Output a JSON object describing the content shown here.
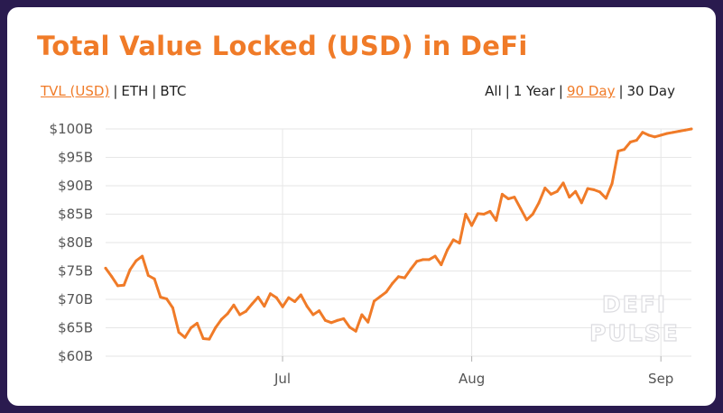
{
  "header": {
    "title": "Total Value Locked (USD) in DeFi"
  },
  "metric_tabs": [
    {
      "label": "TVL (USD)",
      "active": true
    },
    {
      "label": "ETH",
      "active": false
    },
    {
      "label": "BTC",
      "active": false
    }
  ],
  "range_tabs": [
    {
      "label": "All",
      "active": false
    },
    {
      "label": "1 Year",
      "active": false
    },
    {
      "label": "90 Day",
      "active": true
    },
    {
      "label": "30 Day",
      "active": false
    }
  ],
  "separator": "|",
  "watermark": {
    "line1": "DEFI",
    "line2": "PULSE"
  },
  "colors": {
    "accent": "#f07b28",
    "line": "#f07b28",
    "grid": "#e6e6e6",
    "background": "#2a1b4f"
  },
  "chart_data": {
    "type": "line",
    "title": "Total Value Locked (USD) in DeFi",
    "xlabel": "",
    "ylabel": "",
    "y_ticks": [
      "$60B",
      "$65B",
      "$70B",
      "$75B",
      "$80B",
      "$85B",
      "$90B",
      "$95B",
      "$100B"
    ],
    "x_ticks": [
      {
        "label": "Jul",
        "value": "2020-07-01"
      },
      {
        "label": "Aug",
        "value": "2020-08-01"
      },
      {
        "label": "Sep",
        "value": "2020-09-01"
      }
    ],
    "xlim": [
      "2020-06-02",
      "2020-09-06"
    ],
    "ylim": [
      60,
      100
    ],
    "grid": true,
    "series": [
      {
        "x": [
          "2020-06-02",
          "2020-06-03",
          "2020-06-04",
          "2020-06-05",
          "2020-06-06",
          "2020-06-07",
          "2020-06-08",
          "2020-06-09",
          "2020-06-10",
          "2020-06-11",
          "2020-06-12",
          "2020-06-13",
          "2020-06-14",
          "2020-06-15",
          "2020-06-16",
          "2020-06-17",
          "2020-06-18",
          "2020-06-19",
          "2020-06-20",
          "2020-06-21",
          "2020-06-22",
          "2020-06-23",
          "2020-06-24",
          "2020-06-25",
          "2020-06-26",
          "2020-06-27",
          "2020-06-28",
          "2020-06-29",
          "2020-06-30",
          "2020-07-01",
          "2020-07-02",
          "2020-07-03",
          "2020-07-04",
          "2020-07-05",
          "2020-07-06",
          "2020-07-07",
          "2020-07-08",
          "2020-07-09",
          "2020-07-10",
          "2020-07-11",
          "2020-07-12",
          "2020-07-13",
          "2020-07-14",
          "2020-07-15",
          "2020-07-16",
          "2020-07-17",
          "2020-07-18",
          "2020-07-19",
          "2020-07-20",
          "2020-07-21",
          "2020-07-22",
          "2020-07-23",
          "2020-07-24",
          "2020-07-25",
          "2020-07-26",
          "2020-07-27",
          "2020-07-28",
          "2020-07-29",
          "2020-07-30",
          "2020-07-31",
          "2020-08-01",
          "2020-08-02",
          "2020-08-03",
          "2020-08-04",
          "2020-08-05",
          "2020-08-06",
          "2020-08-07",
          "2020-08-08",
          "2020-08-09",
          "2020-08-10",
          "2020-08-11",
          "2020-08-12",
          "2020-08-13",
          "2020-08-14",
          "2020-08-15",
          "2020-08-16",
          "2020-08-17",
          "2020-08-18",
          "2020-08-19",
          "2020-08-20",
          "2020-08-21",
          "2020-08-22",
          "2020-08-23",
          "2020-08-24",
          "2020-08-25",
          "2020-08-26",
          "2020-08-27",
          "2020-08-28",
          "2020-08-29",
          "2020-08-30",
          "2020-08-31",
          "2020-09-01",
          "2020-09-02",
          "2020-09-03",
          "2020-09-04",
          "2020-09-05",
          "2020-09-06"
        ],
        "values": [
          75.5,
          74.0,
          72.4,
          72.5,
          75.2,
          76.8,
          77.6,
          74.2,
          73.6,
          70.4,
          70.1,
          68.5,
          64.2,
          63.3,
          65.0,
          65.8,
          63.1,
          63.0,
          65.0,
          66.5,
          67.5,
          69.0,
          67.3,
          67.9,
          69.2,
          70.4,
          68.8,
          71.0,
          70.3,
          68.7,
          70.3,
          69.6,
          70.8,
          68.8,
          67.3,
          68.0,
          66.3,
          65.9,
          66.3,
          66.6,
          65.1,
          64.4,
          67.3,
          66.0,
          69.7,
          70.5,
          71.3,
          72.8,
          74.0,
          73.8,
          75.3,
          76.7,
          77.0,
          77.0,
          77.6,
          76.1,
          78.7,
          80.5,
          79.9,
          85.0,
          83.0,
          85.1,
          85.0,
          85.5,
          83.9,
          88.5,
          87.7,
          88.0,
          86.0,
          84.0,
          85.0,
          87.0,
          89.6,
          88.5,
          89.0,
          90.5,
          88.0,
          89.0,
          87.0,
          89.5,
          89.3,
          88.9,
          87.8,
          90.4,
          96.1,
          96.4,
          97.7,
          98.0,
          99.4,
          98.9,
          98.6,
          98.9,
          99.2,
          99.4,
          99.6,
          99.8,
          100.0
        ]
      }
    ]
  }
}
